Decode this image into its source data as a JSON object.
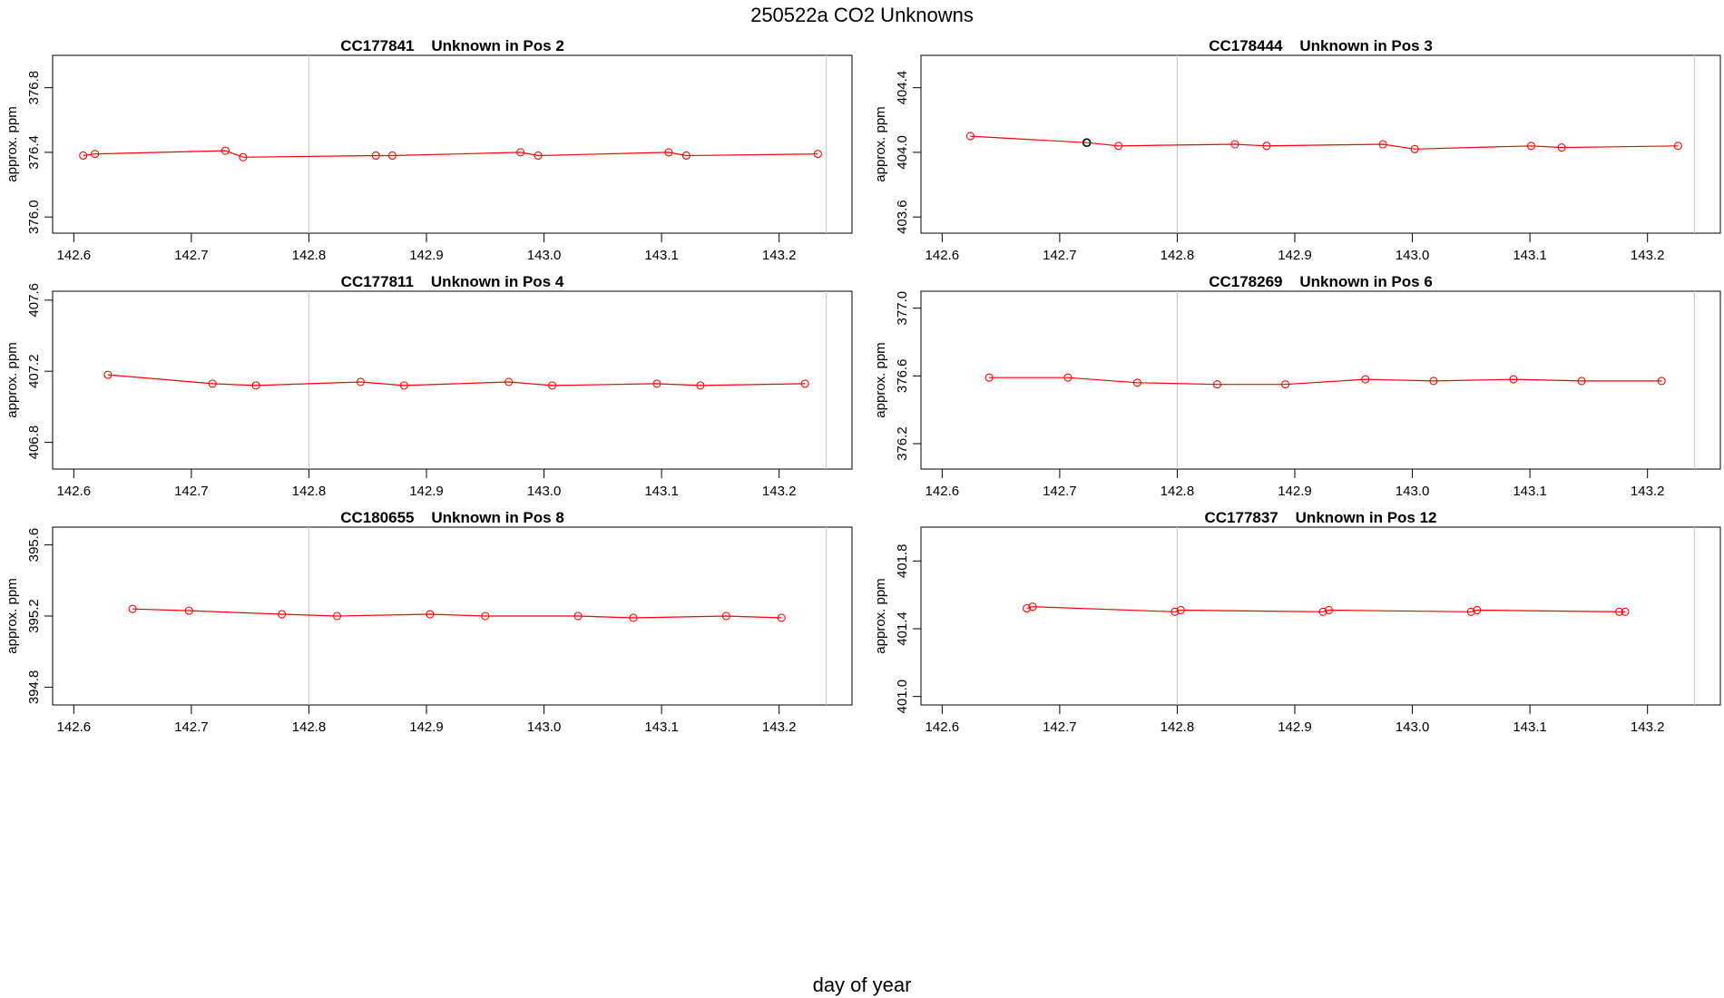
{
  "figure": {
    "title": "250522a  CO2 Unknowns",
    "xlabel": "day of year"
  },
  "colors": {
    "series": "#ff0000",
    "highlight_point": "#000000",
    "reference_line": "#cccccc",
    "frame": "#000000"
  },
  "chart_data": [
    {
      "type": "line",
      "title": "CC177841    Unknown in Pos 2",
      "xlabel": "",
      "ylabel": "approx. ppm",
      "xlim": [
        142.582,
        143.262
      ],
      "ylim": [
        375.9,
        377.0
      ],
      "xticks": [
        "142.6",
        "142.7",
        "142.8",
        "142.9",
        "143.0",
        "143.1",
        "143.2"
      ],
      "yticks": [
        "376.0",
        "376.4",
        "376.8"
      ],
      "vlines": [
        142.8,
        143.24
      ],
      "x": [
        142.608,
        142.618,
        142.729,
        142.744,
        142.857,
        142.871,
        142.98,
        142.995,
        143.106,
        143.121,
        143.233
      ],
      "y": [
        376.38,
        376.39,
        376.41,
        376.37,
        376.38,
        376.38,
        376.4,
        376.38,
        376.4,
        376.38,
        376.39
      ],
      "highlight_index": null
    },
    {
      "type": "line",
      "title": "CC178444    Unknown in Pos 3",
      "xlabel": "",
      "ylabel": "approx. ppm",
      "xlim": [
        142.582,
        143.262
      ],
      "ylim": [
        403.5,
        404.6
      ],
      "xticks": [
        "142.6",
        "142.7",
        "142.8",
        "142.9",
        "143.0",
        "143.1",
        "143.2"
      ],
      "yticks": [
        "403.6",
        "404.0",
        "404.4"
      ],
      "vlines": [
        142.8,
        143.24
      ],
      "x": [
        142.624,
        142.723,
        142.75,
        142.849,
        142.876,
        142.975,
        143.002,
        143.101,
        143.127,
        143.226
      ],
      "y": [
        404.1,
        404.06,
        404.04,
        404.05,
        404.04,
        404.05,
        404.02,
        404.04,
        404.03,
        404.04
      ],
      "highlight_index": 1
    },
    {
      "type": "line",
      "title": "CC177811    Unknown in Pos 4",
      "xlabel": "",
      "ylabel": "approx. ppm",
      "xlim": [
        142.582,
        143.262
      ],
      "ylim": [
        406.65,
        407.65
      ],
      "xticks": [
        "142.6",
        "142.7",
        "142.8",
        "142.9",
        "143.0",
        "143.1",
        "143.2"
      ],
      "yticks": [
        "406.8",
        "407.2",
        "407.6"
      ],
      "vlines": [
        142.8,
        143.24
      ],
      "x": [
        142.629,
        142.718,
        142.755,
        142.844,
        142.881,
        142.97,
        143.007,
        143.096,
        143.133,
        143.222
      ],
      "y": [
        407.18,
        407.13,
        407.12,
        407.14,
        407.12,
        407.14,
        407.12,
        407.13,
        407.12,
        407.13
      ],
      "highlight_index": null
    },
    {
      "type": "line",
      "title": "CC178269    Unknown in Pos 6",
      "xlabel": "",
      "ylabel": "approx. ppm",
      "xlim": [
        142.582,
        143.262
      ],
      "ylim": [
        376.05,
        377.1
      ],
      "xticks": [
        "142.6",
        "142.7",
        "142.8",
        "142.9",
        "143.0",
        "143.1",
        "143.2"
      ],
      "yticks": [
        "376.2",
        "376.6",
        "377.0"
      ],
      "vlines": [
        142.8,
        143.24
      ],
      "x": [
        142.64,
        142.707,
        142.766,
        142.834,
        142.892,
        142.96,
        143.018,
        143.086,
        143.144,
        143.212
      ],
      "y": [
        376.59,
        376.59,
        376.56,
        376.55,
        376.55,
        376.58,
        376.57,
        376.58,
        376.57,
        376.57
      ],
      "highlight_index": null
    },
    {
      "type": "line",
      "title": "CC180655    Unknown in Pos 8",
      "xlabel": "",
      "ylabel": "approx. ppm",
      "xlim": [
        142.582,
        143.262
      ],
      "ylim": [
        394.7,
        395.7
      ],
      "xticks": [
        "142.6",
        "142.7",
        "142.8",
        "142.9",
        "143.0",
        "143.1",
        "143.2"
      ],
      "yticks": [
        "394.8",
        "395.2",
        "395.6"
      ],
      "vlines": [
        142.8,
        143.24
      ],
      "x": [
        142.65,
        142.698,
        142.777,
        142.824,
        142.903,
        142.95,
        143.029,
        143.076,
        143.155,
        143.202
      ],
      "y": [
        395.24,
        395.23,
        395.21,
        395.2,
        395.21,
        395.2,
        395.2,
        395.19,
        395.2,
        395.19
      ],
      "highlight_index": null
    },
    {
      "type": "line",
      "title": "CC177837    Unknown in Pos 12",
      "xlabel": "",
      "ylabel": "approx. ppm",
      "xlim": [
        142.582,
        143.262
      ],
      "ylim": [
        400.95,
        402.0
      ],
      "xticks": [
        "142.6",
        "142.7",
        "142.8",
        "142.9",
        "143.0",
        "143.1",
        "143.2"
      ],
      "yticks": [
        "401.0",
        "401.4",
        "401.8"
      ],
      "vlines": [
        142.8,
        143.24
      ],
      "x": [
        142.672,
        142.677,
        142.798,
        142.803,
        142.924,
        142.929,
        143.05,
        143.055,
        143.176,
        143.181
      ],
      "y": [
        401.52,
        401.53,
        401.5,
        401.51,
        401.5,
        401.51,
        401.5,
        401.51,
        401.5,
        401.5
      ],
      "highlight_index": null
    }
  ]
}
